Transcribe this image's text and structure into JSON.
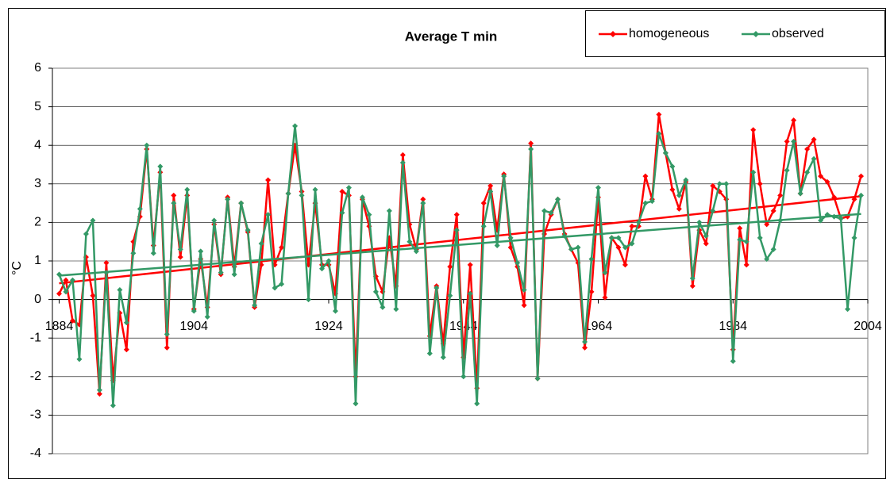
{
  "chart_data": {
    "type": "line",
    "title": "Average T min",
    "y_label": "°C",
    "xlim": [
      1883,
      2004
    ],
    "xticks": [
      1884,
      1904,
      1924,
      1944,
      1964,
      1984,
      2004
    ],
    "ylim": [
      -4,
      6
    ],
    "yticks": [
      -4,
      -3,
      -2,
      -1,
      0,
      1,
      2,
      3,
      4,
      5,
      6
    ],
    "grid": true,
    "legend": "top-right",
    "x": [
      1884,
      1885,
      1886,
      1887,
      1888,
      1889,
      1890,
      1891,
      1892,
      1893,
      1894,
      1895,
      1896,
      1897,
      1898,
      1899,
      1900,
      1901,
      1902,
      1903,
      1904,
      1905,
      1906,
      1907,
      1908,
      1909,
      1910,
      1911,
      1912,
      1913,
      1914,
      1915,
      1916,
      1917,
      1918,
      1919,
      1920,
      1921,
      1922,
      1923,
      1924,
      1925,
      1926,
      1927,
      1928,
      1929,
      1930,
      1931,
      1932,
      1933,
      1934,
      1935,
      1936,
      1937,
      1938,
      1939,
      1940,
      1941,
      1942,
      1943,
      1944,
      1945,
      1946,
      1947,
      1948,
      1949,
      1950,
      1951,
      1952,
      1953,
      1954,
      1955,
      1956,
      1957,
      1958,
      1959,
      1960,
      1961,
      1962,
      1963,
      1964,
      1965,
      1966,
      1967,
      1968,
      1969,
      1970,
      1971,
      1972,
      1973,
      1974,
      1975,
      1976,
      1977,
      1978,
      1979,
      1980,
      1981,
      1982,
      1983,
      1984,
      1985,
      1986,
      1987,
      1988,
      1989,
      1990,
      1991,
      1992,
      1993,
      1994,
      1995,
      1996,
      1997,
      1998,
      1999,
      2000,
      2001,
      2002,
      2003
    ],
    "series": [
      {
        "name": "homogeneous",
        "color": "#ff0000",
        "trend": [
          0.42,
          2.68
        ],
        "values": [
          0.15,
          0.5,
          -0.55,
          -0.65,
          1.1,
          0.1,
          -2.45,
          0.95,
          -2.1,
          -0.35,
          -1.3,
          1.5,
          2.15,
          3.9,
          1.4,
          3.3,
          -1.25,
          2.7,
          1.1,
          2.7,
          -0.25,
          1.05,
          -0.2,
          1.95,
          0.65,
          2.65,
          0.85,
          2.5,
          1.75,
          -0.2,
          0.9,
          3.1,
          0.9,
          1.35,
          2.75,
          4.0,
          2.8,
          0.9,
          2.5,
          0.9,
          0.9,
          0.15,
          2.8,
          2.7,
          -2.0,
          2.6,
          1.9,
          0.6,
          0.2,
          1.6,
          0.35,
          3.75,
          1.95,
          1.3,
          2.6,
          -0.95,
          0.35,
          -1.15,
          0.85,
          2.2,
          -1.5,
          0.9,
          -2.3,
          2.5,
          2.95,
          1.8,
          3.25,
          1.35,
          0.85,
          -0.15,
          4.05,
          -2.05,
          1.7,
          2.2,
          2.6,
          1.7,
          1.3,
          0.95,
          -1.25,
          0.2,
          2.65,
          0.05,
          1.6,
          1.35,
          0.9,
          1.9,
          1.9,
          3.2,
          2.6,
          4.8,
          3.8,
          2.85,
          2.35,
          3.05,
          0.35,
          1.8,
          1.45,
          2.95,
          2.8,
          2.6,
          -1.3,
          1.85,
          0.9,
          4.4,
          3.0,
          1.95,
          2.3,
          2.7,
          4.1,
          4.65,
          2.75,
          3.9,
          4.15,
          3.2,
          3.05,
          2.65,
          2.1,
          2.15,
          2.6,
          3.2
        ]
      },
      {
        "name": "observed",
        "color": "#339966",
        "trend": [
          0.62,
          2.22
        ],
        "values": [
          0.65,
          0.2,
          0.5,
          -1.55,
          1.7,
          2.05,
          -2.35,
          0.7,
          -2.75,
          0.25,
          -0.6,
          1.2,
          2.35,
          4.0,
          1.2,
          3.45,
          -0.9,
          2.5,
          1.3,
          2.85,
          -0.3,
          1.25,
          -0.45,
          2.05,
          0.7,
          2.6,
          0.65,
          2.5,
          1.8,
          -0.15,
          1.45,
          2.2,
          0.3,
          0.4,
          2.75,
          4.5,
          2.7,
          0.0,
          2.85,
          0.8,
          1.0,
          -0.3,
          2.25,
          2.9,
          -2.7,
          2.65,
          2.2,
          0.2,
          -0.2,
          2.3,
          -0.25,
          3.55,
          1.5,
          1.25,
          2.5,
          -1.4,
          0.3,
          -1.5,
          0.1,
          1.8,
          -2.0,
          0.15,
          -2.7,
          1.9,
          2.8,
          1.4,
          3.2,
          1.6,
          0.95,
          0.25,
          3.9,
          -2.05,
          2.3,
          2.25,
          2.6,
          1.65,
          1.3,
          1.35,
          -1.1,
          1.05,
          2.9,
          0.7,
          1.6,
          1.6,
          1.35,
          1.45,
          2.0,
          2.5,
          2.55,
          4.3,
          3.8,
          3.45,
          2.7,
          3.1,
          0.55,
          2.0,
          1.65,
          2.3,
          3.0,
          3.0,
          -1.6,
          1.55,
          1.5,
          3.3,
          1.6,
          1.05,
          1.3,
          2.05,
          3.35,
          4.1,
          2.75,
          3.3,
          3.65,
          2.05,
          2.2,
          2.15,
          2.1,
          -0.25,
          1.6,
          2.7
        ]
      }
    ]
  }
}
